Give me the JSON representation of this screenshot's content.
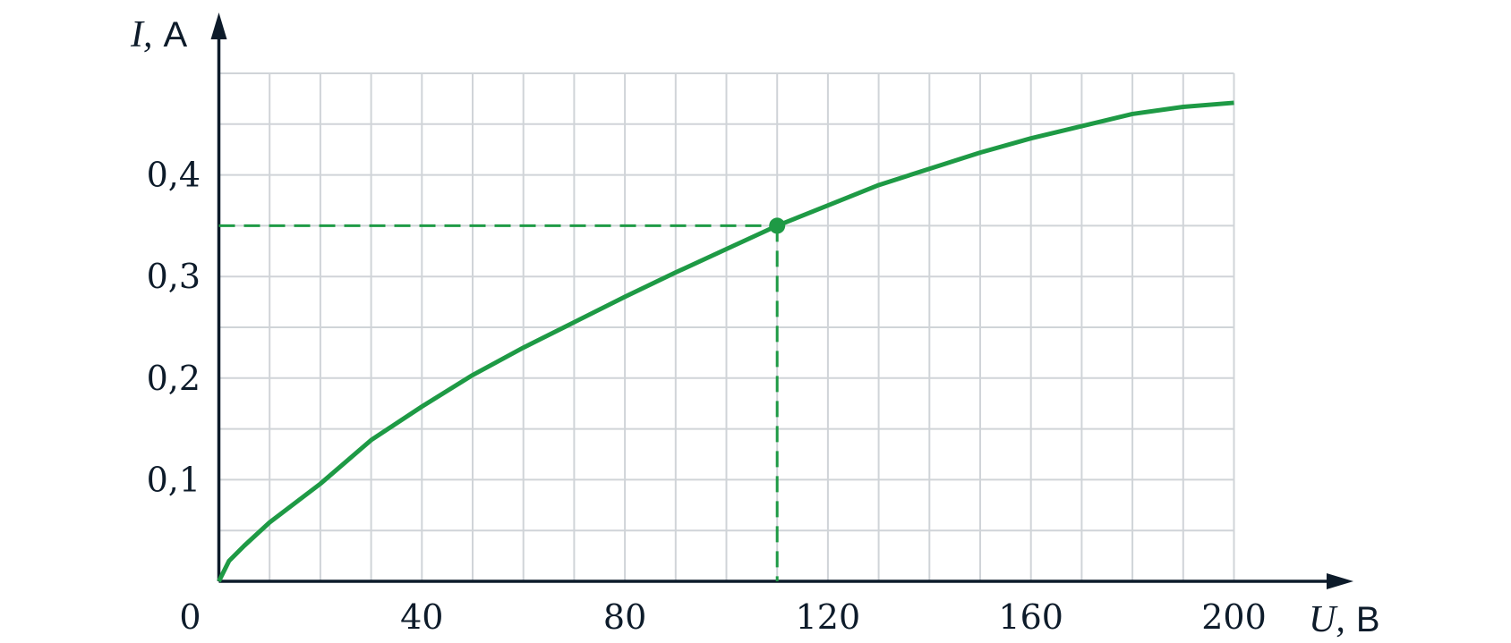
{
  "chart_data": {
    "type": "line",
    "xlabel_symbol": "U,",
    "xlabel_unit": "В",
    "ylabel_symbol": "I,",
    "ylabel_unit": "А",
    "x": [
      0,
      2,
      5,
      10,
      20,
      30,
      40,
      50,
      60,
      70,
      80,
      90,
      100,
      110,
      120,
      130,
      140,
      150,
      160,
      170,
      180,
      190,
      200
    ],
    "values": [
      0,
      0.02,
      0.035,
      0.058,
      0.096,
      0.139,
      0.172,
      0.203,
      0.23,
      0.255,
      0.28,
      0.304,
      0.327,
      0.35,
      0.37,
      0.39,
      0.406,
      0.422,
      0.436,
      0.448,
      0.46,
      0.467,
      0.471
    ],
    "color": "#1e9a45",
    "point": {
      "x": 110,
      "y": 0.35
    },
    "xlim": [
      0,
      200
    ],
    "ylim": [
      0,
      0.5
    ],
    "xticks": [
      0,
      40,
      80,
      120,
      160,
      200
    ],
    "yticks": [
      {
        "value": 0.1,
        "label": "0,1"
      },
      {
        "value": 0.2,
        "label": "0,2"
      },
      {
        "value": 0.3,
        "label": "0,3"
      },
      {
        "value": 0.4,
        "label": "0,4"
      }
    ],
    "grid": true,
    "grid_step_x": 10,
    "grid_step_y": 0.05
  }
}
